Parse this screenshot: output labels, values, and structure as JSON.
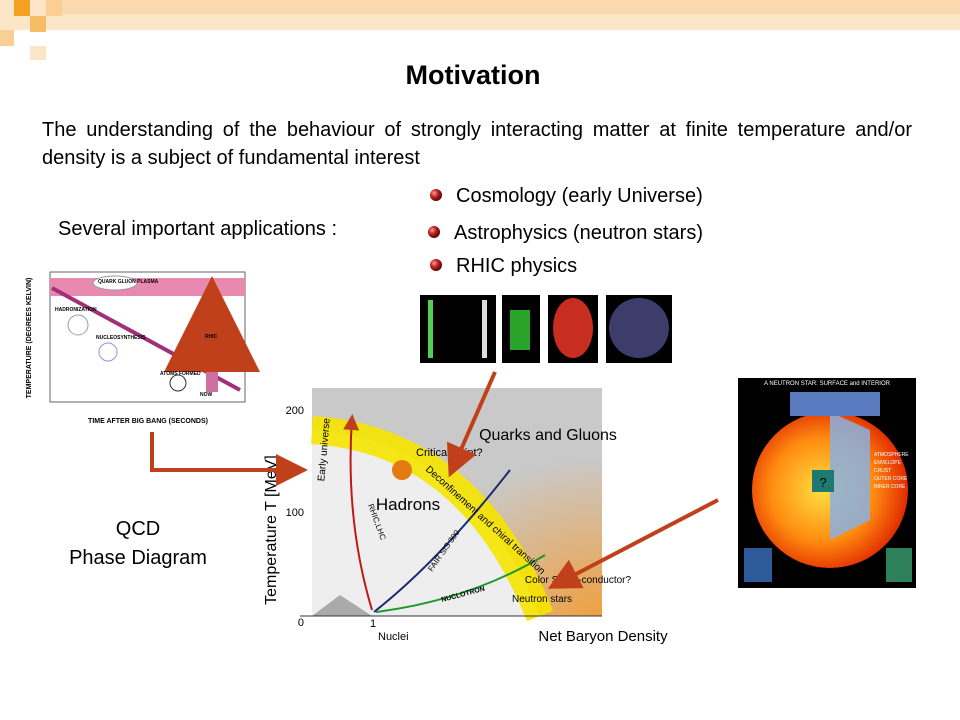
{
  "slide": {
    "title": "Motivation",
    "intro": "The understanding of the behaviour of strongly interacting matter at finite temperature and/or density is a subject of fundamental interest",
    "applications_label": "Several important applications :",
    "bullets": [
      "Cosmology (early Universe)",
      "Astrophysics (neutron stars)",
      "RHIC physics"
    ],
    "caption": [
      "QCD",
      "Phase Diagram"
    ]
  },
  "cosmology_plot": {
    "y_label": "TEMPERATURE (DEGREES KELVIN)",
    "x_label": "TIME AFTER BIG BANG (SECONDS)",
    "labels": [
      "QUARK GLUON PLASMA",
      "HADRONIZATION",
      "NUCLEOSYNTHESIS",
      "ATOMS FORMED",
      "RHIC",
      "NOW"
    ]
  },
  "phase_diagram": {
    "y_label": "Temperature T [MeV]",
    "x_label": "Net Baryon Density",
    "y_ticks": [
      "200",
      "100",
      "0"
    ],
    "x_ticks": [
      "1"
    ],
    "x_tick_note": "Nuclei",
    "regions": [
      "Quarks and Gluons",
      "Hadrons",
      "Color Super-conductor?",
      "Neutron stars"
    ],
    "labels": [
      "Critical point?",
      "Deconfinement and chiral transition",
      "Early universe",
      "RHIC,LHC",
      "FAIR SIS 300",
      "NUCLOTRON"
    ]
  },
  "neutron_star": {
    "title": "A NEUTRON STAR: SURFACE and INTERIOR",
    "labels": [
      "ATMOSPHERE",
      "ENVELOPE",
      "CRUST",
      "OUTER CORE",
      "INNER CORE",
      "?"
    ]
  }
}
